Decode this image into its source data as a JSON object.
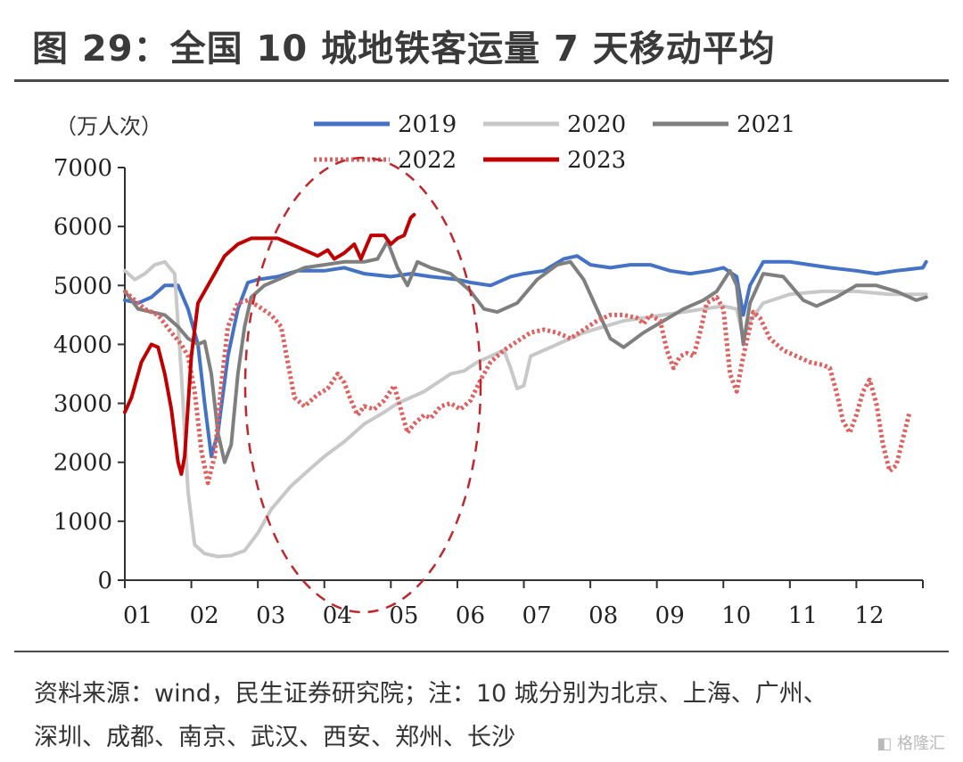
{
  "header": {
    "title": "图 29：全国 10 城地铁客运量 7 天移动平均"
  },
  "footer": {
    "source_line1": "资料来源：wind，民生证券研究院；注：10 城分别为北京、上海、广州、",
    "source_line2": "深圳、成都、南京、武汉、西安、郑州、长沙"
  },
  "watermark": {
    "text": "格隆汇"
  },
  "chart_data": {
    "type": "line",
    "title": "全国 10 城地铁客运量 7 天移动平均",
    "ylabel": "（万人次）",
    "xlabel": "",
    "ylim": [
      0,
      7000
    ],
    "xlim": [
      0,
      12
    ],
    "yticks": [
      0,
      1000,
      2000,
      3000,
      4000,
      5000,
      6000,
      7000
    ],
    "xtick_labels": [
      "01",
      "02",
      "03",
      "04",
      "05",
      "06",
      "07",
      "08",
      "09",
      "10",
      "11",
      "12"
    ],
    "legend_position": "top",
    "annotation": "dashed red ellipse highlighting March–May",
    "series": [
      {
        "name": "2019",
        "color": "#4472c4",
        "style": "solid",
        "points": [
          [
            0,
            4750
          ],
          [
            0.2,
            4700
          ],
          [
            0.4,
            4800
          ],
          [
            0.6,
            5000
          ],
          [
            0.8,
            5000
          ],
          [
            0.95,
            4600
          ],
          [
            1.1,
            4000
          ],
          [
            1.2,
            3000
          ],
          [
            1.3,
            2100
          ],
          [
            1.4,
            2500
          ],
          [
            1.55,
            3800
          ],
          [
            1.7,
            4600
          ],
          [
            1.85,
            5050
          ],
          [
            2.0,
            5100
          ],
          [
            2.3,
            5150
          ],
          [
            2.6,
            5250
          ],
          [
            3.0,
            5250
          ],
          [
            3.3,
            5300
          ],
          [
            3.6,
            5200
          ],
          [
            4.0,
            5150
          ],
          [
            4.3,
            5200
          ],
          [
            4.6,
            5150
          ],
          [
            5.0,
            5100
          ],
          [
            5.2,
            5050
          ],
          [
            5.5,
            5000
          ],
          [
            5.8,
            5150
          ],
          [
            6.0,
            5200
          ],
          [
            6.3,
            5250
          ],
          [
            6.6,
            5450
          ],
          [
            6.8,
            5500
          ],
          [
            7.0,
            5350
          ],
          [
            7.3,
            5300
          ],
          [
            7.6,
            5350
          ],
          [
            7.9,
            5350
          ],
          [
            8.2,
            5250
          ],
          [
            8.5,
            5200
          ],
          [
            8.8,
            5250
          ],
          [
            9.0,
            5300
          ],
          [
            9.2,
            5150
          ],
          [
            9.3,
            4500
          ],
          [
            9.4,
            5000
          ],
          [
            9.6,
            5400
          ],
          [
            10.0,
            5400
          ],
          [
            10.3,
            5350
          ],
          [
            10.6,
            5300
          ],
          [
            11.0,
            5250
          ],
          [
            11.3,
            5200
          ],
          [
            11.6,
            5250
          ],
          [
            12.0,
            5300
          ],
          [
            12.05,
            5400
          ]
        ]
      },
      {
        "name": "2020",
        "color": "#c8c8c8",
        "style": "solid",
        "points": [
          [
            0,
            5250
          ],
          [
            0.15,
            5100
          ],
          [
            0.3,
            5200
          ],
          [
            0.45,
            5350
          ],
          [
            0.6,
            5400
          ],
          [
            0.75,
            5200
          ],
          [
            0.85,
            3500
          ],
          [
            0.95,
            1500
          ],
          [
            1.05,
            600
          ],
          [
            1.2,
            450
          ],
          [
            1.4,
            400
          ],
          [
            1.6,
            420
          ],
          [
            1.8,
            500
          ],
          [
            2.0,
            800
          ],
          [
            2.2,
            1200
          ],
          [
            2.5,
            1600
          ],
          [
            2.8,
            1900
          ],
          [
            3.0,
            2100
          ],
          [
            3.3,
            2350
          ],
          [
            3.6,
            2650
          ],
          [
            3.9,
            2850
          ],
          [
            4.1,
            3000
          ],
          [
            4.3,
            3100
          ],
          [
            4.5,
            3200
          ],
          [
            4.7,
            3350
          ],
          [
            4.9,
            3500
          ],
          [
            5.1,
            3550
          ],
          [
            5.3,
            3700
          ],
          [
            5.5,
            3800
          ],
          [
            5.7,
            3900
          ],
          [
            5.8,
            3600
          ],
          [
            5.9,
            3250
          ],
          [
            6.0,
            3300
          ],
          [
            6.1,
            3800
          ],
          [
            6.3,
            3900
          ],
          [
            6.6,
            4050
          ],
          [
            6.9,
            4200
          ],
          [
            7.2,
            4300
          ],
          [
            7.5,
            4400
          ],
          [
            7.8,
            4450
          ],
          [
            8.1,
            4500
          ],
          [
            8.4,
            4550
          ],
          [
            8.7,
            4600
          ],
          [
            9.0,
            4650
          ],
          [
            9.2,
            4600
          ],
          [
            9.3,
            4100
          ],
          [
            9.4,
            4400
          ],
          [
            9.6,
            4700
          ],
          [
            10.0,
            4850
          ],
          [
            10.5,
            4900
          ],
          [
            11.0,
            4900
          ],
          [
            11.5,
            4850
          ],
          [
            12.0,
            4850
          ],
          [
            12.05,
            4850
          ]
        ]
      },
      {
        "name": "2021",
        "color": "#7f7f7f",
        "style": "solid",
        "points": [
          [
            0,
            4900
          ],
          [
            0.2,
            4600
          ],
          [
            0.4,
            4550
          ],
          [
            0.6,
            4500
          ],
          [
            0.8,
            4300
          ],
          [
            0.95,
            4100
          ],
          [
            1.1,
            4000
          ],
          [
            1.2,
            4050
          ],
          [
            1.3,
            3500
          ],
          [
            1.4,
            2500
          ],
          [
            1.5,
            2000
          ],
          [
            1.6,
            2300
          ],
          [
            1.7,
            3500
          ],
          [
            1.8,
            4300
          ],
          [
            1.9,
            4800
          ],
          [
            2.1,
            5000
          ],
          [
            2.4,
            5150
          ],
          [
            2.7,
            5300
          ],
          [
            3.0,
            5350
          ],
          [
            3.3,
            5400
          ],
          [
            3.6,
            5400
          ],
          [
            3.8,
            5450
          ],
          [
            3.95,
            5750
          ],
          [
            4.1,
            5300
          ],
          [
            4.25,
            5000
          ],
          [
            4.4,
            5400
          ],
          [
            4.6,
            5300
          ],
          [
            4.9,
            5200
          ],
          [
            5.2,
            4900
          ],
          [
            5.4,
            4600
          ],
          [
            5.6,
            4550
          ],
          [
            5.9,
            4700
          ],
          [
            6.2,
            5100
          ],
          [
            6.5,
            5350
          ],
          [
            6.7,
            5400
          ],
          [
            6.9,
            5100
          ],
          [
            7.1,
            4600
          ],
          [
            7.3,
            4100
          ],
          [
            7.5,
            3950
          ],
          [
            7.8,
            4200
          ],
          [
            8.1,
            4400
          ],
          [
            8.4,
            4600
          ],
          [
            8.7,
            4750
          ],
          [
            8.9,
            4900
          ],
          [
            9.1,
            5250
          ],
          [
            9.2,
            5000
          ],
          [
            9.3,
            4000
          ],
          [
            9.4,
            4700
          ],
          [
            9.6,
            5200
          ],
          [
            9.9,
            5150
          ],
          [
            10.2,
            4750
          ],
          [
            10.4,
            4650
          ],
          [
            10.7,
            4800
          ],
          [
            11.0,
            5000
          ],
          [
            11.3,
            5000
          ],
          [
            11.6,
            4900
          ],
          [
            11.9,
            4750
          ],
          [
            12.05,
            4800
          ]
        ]
      },
      {
        "name": "2022",
        "color": "#e06060",
        "style": "dotted",
        "points": [
          [
            0,
            4900
          ],
          [
            0.15,
            4750
          ],
          [
            0.3,
            4600
          ],
          [
            0.5,
            4500
          ],
          [
            0.7,
            4200
          ],
          [
            0.85,
            4000
          ],
          [
            0.95,
            3800
          ],
          [
            1.05,
            3200
          ],
          [
            1.15,
            2200
          ],
          [
            1.25,
            1650
          ],
          [
            1.35,
            2100
          ],
          [
            1.45,
            3300
          ],
          [
            1.55,
            4300
          ],
          [
            1.7,
            4700
          ],
          [
            1.85,
            4750
          ],
          [
            2.0,
            4650
          ],
          [
            2.2,
            4500
          ],
          [
            2.35,
            4300
          ],
          [
            2.45,
            3700
          ],
          [
            2.55,
            3100
          ],
          [
            2.7,
            2950
          ],
          [
            2.9,
            3150
          ],
          [
            3.05,
            3250
          ],
          [
            3.2,
            3500
          ],
          [
            3.3,
            3350
          ],
          [
            3.4,
            3050
          ],
          [
            3.5,
            2800
          ],
          [
            3.6,
            2950
          ],
          [
            3.75,
            2900
          ],
          [
            3.9,
            3050
          ],
          [
            4.05,
            3300
          ],
          [
            4.15,
            2900
          ],
          [
            4.25,
            2500
          ],
          [
            4.35,
            2650
          ],
          [
            4.5,
            2800
          ],
          [
            4.6,
            2750
          ],
          [
            4.75,
            2950
          ],
          [
            4.9,
            3000
          ],
          [
            5.05,
            2900
          ],
          [
            5.2,
            3050
          ],
          [
            5.35,
            3400
          ],
          [
            5.5,
            3700
          ],
          [
            5.7,
            3900
          ],
          [
            5.9,
            4050
          ],
          [
            6.1,
            4200
          ],
          [
            6.3,
            4250
          ],
          [
            6.5,
            4200
          ],
          [
            6.7,
            4100
          ],
          [
            6.9,
            4250
          ],
          [
            7.1,
            4400
          ],
          [
            7.3,
            4500
          ],
          [
            7.5,
            4500
          ],
          [
            7.7,
            4450
          ],
          [
            7.8,
            4350
          ],
          [
            7.9,
            4500
          ],
          [
            8.05,
            4400
          ],
          [
            8.15,
            3900
          ],
          [
            8.25,
            3600
          ],
          [
            8.35,
            3800
          ],
          [
            8.45,
            3850
          ],
          [
            8.55,
            3800
          ],
          [
            8.65,
            4200
          ],
          [
            8.75,
            4700
          ],
          [
            8.9,
            4800
          ],
          [
            9.0,
            4600
          ],
          [
            9.1,
            3500
          ],
          [
            9.2,
            3200
          ],
          [
            9.3,
            3800
          ],
          [
            9.45,
            4550
          ],
          [
            9.55,
            4450
          ],
          [
            9.7,
            4100
          ],
          [
            9.9,
            3900
          ],
          [
            10.1,
            3800
          ],
          [
            10.3,
            3700
          ],
          [
            10.5,
            3650
          ],
          [
            10.6,
            3600
          ],
          [
            10.7,
            3200
          ],
          [
            10.8,
            2700
          ],
          [
            10.9,
            2500
          ],
          [
            11.0,
            2800
          ],
          [
            11.1,
            3200
          ],
          [
            11.2,
            3400
          ],
          [
            11.3,
            3000
          ],
          [
            11.4,
            2300
          ],
          [
            11.5,
            1850
          ],
          [
            11.6,
            1950
          ],
          [
            11.7,
            2400
          ],
          [
            11.8,
            2850
          ]
        ]
      },
      {
        "name": "2023",
        "color": "#c00000",
        "style": "solid",
        "points": [
          [
            0,
            2850
          ],
          [
            0.1,
            3100
          ],
          [
            0.25,
            3700
          ],
          [
            0.4,
            4000
          ],
          [
            0.5,
            3950
          ],
          [
            0.6,
            3500
          ],
          [
            0.7,
            2900
          ],
          [
            0.8,
            2000
          ],
          [
            0.85,
            1800
          ],
          [
            0.9,
            2100
          ],
          [
            1.0,
            3800
          ],
          [
            1.1,
            4700
          ],
          [
            1.2,
            4900
          ],
          [
            1.35,
            5200
          ],
          [
            1.5,
            5500
          ],
          [
            1.7,
            5700
          ],
          [
            1.9,
            5800
          ],
          [
            2.1,
            5800
          ],
          [
            2.3,
            5800
          ],
          [
            2.5,
            5700
          ],
          [
            2.7,
            5600
          ],
          [
            2.9,
            5500
          ],
          [
            3.05,
            5600
          ],
          [
            3.15,
            5450
          ],
          [
            3.3,
            5550
          ],
          [
            3.45,
            5700
          ],
          [
            3.55,
            5450
          ],
          [
            3.7,
            5850
          ],
          [
            3.9,
            5850
          ],
          [
            4.0,
            5700
          ],
          [
            4.1,
            5800
          ],
          [
            4.2,
            5850
          ],
          [
            4.3,
            6150
          ],
          [
            4.35,
            6200
          ]
        ]
      }
    ]
  }
}
